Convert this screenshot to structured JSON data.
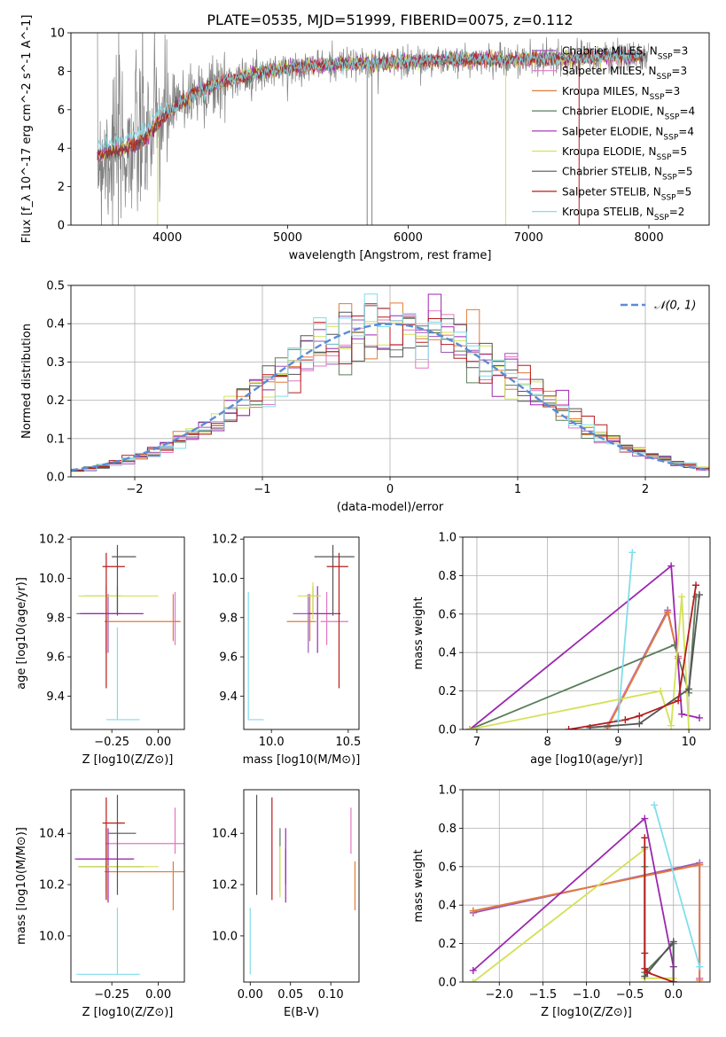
{
  "figure_title": "PLATE=0535, MJD=51999, FIBERID=0075, z=0.112",
  "models": [
    {
      "name": "Chabrier MILES",
      "nssp": "3",
      "color": "#9b59b6"
    },
    {
      "name": "Salpeter MILES",
      "nssp": "3",
      "color": "#e377c2"
    },
    {
      "name": "Kroupa MILES",
      "nssp": "3",
      "color": "#e07b39"
    },
    {
      "name": "Chabrier ELODIE",
      "nssp": "4",
      "color": "#5a7d5a"
    },
    {
      "name": "Salpeter ELODIE",
      "nssp": "4",
      "color": "#9b27af"
    },
    {
      "name": "Kroupa ELODIE",
      "nssp": "5",
      "color": "#d4e157"
    },
    {
      "name": "Chabrier STELIB",
      "nssp": "5",
      "color": "#555555"
    },
    {
      "name": "Salpeter STELIB",
      "nssp": "5",
      "color": "#b71c1c"
    },
    {
      "name": "Kroupa STELIB",
      "nssp": "2",
      "color": "#80deea"
    }
  ],
  "chart_data": [
    {
      "id": "spectrum",
      "type": "line",
      "xlabel": "wavelength [Angstrom, rest frame]",
      "ylabel": "Flux [f_λ 10^-17 erg cm^-2 s^-1 A^-1]",
      "xlim": [
        3200,
        8500
      ],
      "ylim": [
        0,
        10
      ],
      "xticks": [
        4000,
        5000,
        6000,
        7000,
        8000
      ],
      "yticks": [
        0,
        2,
        4,
        6,
        8,
        10
      ],
      "grid": false,
      "legend_position": "right",
      "data_color": "#808080",
      "data_range": [
        3420,
        8000
      ],
      "continuum": {
        "x": [
          3420,
          3600,
          3800,
          4000,
          4200,
          4500,
          4800,
          5200,
          5600,
          6000,
          6500,
          7000,
          7500,
          8000
        ],
        "y": [
          3.6,
          3.9,
          4.4,
          5.8,
          6.8,
          7.5,
          8.0,
          8.3,
          8.4,
          8.5,
          8.6,
          8.6,
          8.7,
          8.8
        ]
      }
    },
    {
      "id": "residuals",
      "type": "step",
      "xlabel": "(data-model)/error",
      "ylabel": "Normed distribution",
      "xlim": [
        -2.5,
        2.5
      ],
      "ylim": [
        0,
        0.5
      ],
      "xticks": [
        -2,
        -1,
        0,
        1,
        2
      ],
      "yticks": [
        0.0,
        0.1,
        0.2,
        0.3,
        0.4,
        0.5
      ],
      "grid": true,
      "bin_width": 0.1,
      "reference_curve": {
        "name": "𝒩(0, 1)",
        "mu": 0,
        "sigma": 1,
        "color": "#5b8bd9"
      },
      "legend_position": "top-right"
    },
    {
      "id": "age-vs-Z",
      "type": "errorbar",
      "xlabel": "Z [log10(Z/Z⊙)]",
      "ylabel": "age [log10(age/yr)]",
      "xlim": [
        -0.47,
        0.14
      ],
      "ylim": [
        9.23,
        10.21
      ],
      "xticks": [
        -0.25,
        0.0
      ],
      "yticks": [
        9.4,
        9.6,
        9.8,
        10.0,
        10.2
      ],
      "points": [
        {
          "x": -0.27,
          "y": 9.82,
          "xerr": [
            0.17,
            0.07
          ],
          "yerr": [
            0.2,
            0.1
          ]
        },
        {
          "x": 0.09,
          "y": 9.78,
          "xerr": [
            0.0,
            0.02
          ],
          "yerr": [
            0.12,
            0.15
          ]
        },
        {
          "x": 0.08,
          "y": 9.78,
          "xerr": [
            0.37,
            0.04
          ],
          "yerr": [
            0.1,
            0.14
          ]
        },
        {
          "x": -0.22,
          "y": 9.91,
          "xerr": [
            0.18,
            0.02
          ],
          "yerr": [
            0.09,
            0.05
          ]
        },
        {
          "x": -0.28,
          "y": 9.82,
          "xerr": [
            0.14,
            0.2
          ],
          "yerr": [
            0.2,
            0.14
          ]
        },
        {
          "x": -0.28,
          "y": 9.91,
          "xerr": [
            0.15,
            0.28
          ],
          "yerr": [
            0.12,
            0.07
          ]
        },
        {
          "x": -0.22,
          "y": 10.11,
          "xerr": [
            0.03,
            0.1
          ],
          "yerr": [
            0.3,
            0.06
          ]
        },
        {
          "x": -0.28,
          "y": 10.06,
          "xerr": [
            0.02,
            0.1
          ],
          "yerr": [
            0.62,
            0.07
          ]
        },
        {
          "x": -0.22,
          "y": 9.28,
          "xerr": [
            0.06,
            0.12
          ],
          "yerr": [
            0.0,
            0.47
          ]
        }
      ]
    },
    {
      "id": "age-vs-mass",
      "type": "errorbar",
      "xlabel": "mass [log10(M/M⊙)]",
      "ylabel": "",
      "xlim": [
        9.82,
        10.57
      ],
      "ylim": [
        9.23,
        10.21
      ],
      "xticks": [
        10.0,
        10.5
      ],
      "yticks": [
        9.4,
        9.6,
        9.8,
        10.0,
        10.2
      ],
      "points": [
        {
          "x": 10.24,
          "y": 9.82,
          "xerr": [
            0.1,
            0.04
          ],
          "yerr": [
            0.2,
            0.1
          ]
        },
        {
          "x": 10.36,
          "y": 9.78,
          "xerr": [
            0.04,
            0.14
          ],
          "yerr": [
            0.12,
            0.15
          ]
        },
        {
          "x": 10.25,
          "y": 9.78,
          "xerr": [
            0.15,
            0.04
          ],
          "yerr": [
            0.1,
            0.14
          ]
        },
        {
          "x": 10.27,
          "y": 9.91,
          "xerr": [
            0.05,
            0.05
          ],
          "yerr": [
            0.09,
            0.05
          ]
        },
        {
          "x": 10.3,
          "y": 9.82,
          "xerr": [
            0.06,
            0.15
          ],
          "yerr": [
            0.2,
            0.14
          ]
        },
        {
          "x": 10.27,
          "y": 9.91,
          "xerr": [
            0.1,
            0.05
          ],
          "yerr": [
            0.12,
            0.07
          ]
        },
        {
          "x": 10.4,
          "y": 10.11,
          "xerr": [
            0.12,
            0.14
          ],
          "yerr": [
            0.3,
            0.06
          ]
        },
        {
          "x": 10.44,
          "y": 10.06,
          "xerr": [
            0.08,
            0.06
          ],
          "yerr": [
            0.62,
            0.07
          ]
        },
        {
          "x": 9.85,
          "y": 9.28,
          "xerr": [
            0.0,
            0.1
          ],
          "yerr": [
            0.0,
            0.65
          ]
        }
      ]
    },
    {
      "id": "weight-vs-age",
      "type": "line",
      "xlabel": "age [log10(age/yr)]",
      "ylabel": "mass weight",
      "xlim": [
        6.8,
        10.3
      ],
      "ylim": [
        0,
        1
      ],
      "xticks": [
        7,
        8,
        9,
        10
      ],
      "yticks": [
        0.0,
        0.2,
        0.4,
        0.6,
        0.8,
        1.0
      ],
      "grid": true,
      "series": [
        {
          "x": [
            8.85,
            9.7,
            9.85
          ],
          "y": [
            0.02,
            0.62,
            0.37
          ]
        },
        {
          "x": [
            8.85,
            9.7,
            9.85
          ],
          "y": [
            0.02,
            0.61,
            0.37
          ]
        },
        {
          "x": [
            8.85,
            9.7,
            9.85
          ],
          "y": [
            0.01,
            0.61,
            0.38
          ]
        },
        {
          "x": [
            6.9,
            9.8,
            10.0,
            10.1
          ],
          "y": [
            0.0,
            0.44,
            0.19,
            0.69
          ]
        },
        {
          "x": [
            6.9,
            9.75,
            9.9,
            10.15
          ],
          "y": [
            0.0,
            0.85,
            0.08,
            0.06
          ]
        },
        {
          "x": [
            6.9,
            9.6,
            9.75,
            9.9,
            10.0
          ],
          "y": [
            0.0,
            0.2,
            0.02,
            0.69,
            0.0
          ]
        },
        {
          "x": [
            8.6,
            9.3,
            10.0,
            10.15
          ],
          "y": [
            0.01,
            0.03,
            0.21,
            0.7
          ]
        },
        {
          "x": [
            8.3,
            9.1,
            9.3,
            9.85,
            10.1
          ],
          "y": [
            0.0,
            0.05,
            0.07,
            0.15,
            0.75
          ]
        },
        {
          "x": [
            9.0,
            9.2
          ],
          "y": [
            0.05,
            0.92
          ]
        }
      ]
    },
    {
      "id": "mass-vs-Z",
      "type": "errorbar",
      "xlabel": "Z [log10(Z/Z⊙)]",
      "ylabel": "mass [log10(M/M⊙)]",
      "xlim": [
        -0.47,
        0.14
      ],
      "ylim": [
        9.82,
        10.57
      ],
      "xticks": [
        -0.25,
        0.0
      ],
      "yticks": [
        10.0,
        10.2,
        10.4
      ],
      "points": [
        {
          "x": -0.28,
          "y": 10.3,
          "xerr": [
            0.17,
            0.14
          ],
          "yerr": [
            0.1,
            0.04
          ]
        },
        {
          "x": 0.09,
          "y": 10.36,
          "xerr": [
            0.37,
            0.06
          ],
          "yerr": [
            0.04,
            0.14
          ]
        },
        {
          "x": 0.08,
          "y": 10.25,
          "xerr": [
            0.37,
            0.06
          ],
          "yerr": [
            0.15,
            0.04
          ]
        },
        {
          "x": -0.28,
          "y": 10.27,
          "xerr": [
            0.15,
            0.2
          ],
          "yerr": [
            0.1,
            0.15
          ]
        },
        {
          "x": -0.27,
          "y": 10.3,
          "xerr": [
            0.17,
            0.14
          ],
          "yerr": [
            0.17,
            0.12
          ]
        },
        {
          "x": -0.28,
          "y": 10.27,
          "xerr": [
            0.15,
            0.28
          ],
          "yerr": [
            0.12,
            0.08
          ]
        },
        {
          "x": -0.22,
          "y": 10.4,
          "xerr": [
            0.05,
            0.1
          ],
          "yerr": [
            0.24,
            0.15
          ]
        },
        {
          "x": -0.28,
          "y": 10.44,
          "xerr": [
            0.02,
            0.1
          ],
          "yerr": [
            0.3,
            0.1
          ]
        },
        {
          "x": -0.22,
          "y": 9.85,
          "xerr": [
            0.22,
            0.12
          ],
          "yerr": [
            0.0,
            0.26
          ]
        }
      ]
    },
    {
      "id": "ebv",
      "type": "errorbar",
      "xlabel": "E(B-V)",
      "ylabel": "",
      "xlim": [
        -0.008,
        0.135
      ],
      "ylim": [
        9.82,
        10.57
      ],
      "xticks": [
        0.0,
        0.05,
        0.1
      ],
      "yticks": [
        10.0,
        10.2,
        10.4
      ],
      "points": [
        {
          "x": 0.044,
          "y": 10.3,
          "yerr": [
            0.1,
            0.04
          ]
        },
        {
          "x": 0.125,
          "y": 10.36,
          "yerr": [
            0.04,
            0.14
          ]
        },
        {
          "x": 0.13,
          "y": 10.25,
          "yerr": [
            0.15,
            0.04
          ]
        },
        {
          "x": 0.037,
          "y": 10.27,
          "yerr": [
            0.1,
            0.15
          ]
        },
        {
          "x": 0.044,
          "y": 10.3,
          "yerr": [
            0.17,
            0.12
          ]
        },
        {
          "x": 0.037,
          "y": 10.27,
          "yerr": [
            0.12,
            0.08
          ]
        },
        {
          "x": 0.008,
          "y": 10.4,
          "yerr": [
            0.24,
            0.15
          ]
        },
        {
          "x": 0.027,
          "y": 10.44,
          "yerr": [
            0.3,
            0.1
          ]
        },
        {
          "x": 0.0,
          "y": 9.85,
          "yerr": [
            0.0,
            0.26
          ]
        }
      ]
    },
    {
      "id": "weight-vs-Z",
      "type": "line",
      "xlabel": "Z [log10(Z/Z⊙)]",
      "ylabel": "mass weight",
      "xlim": [
        -2.42,
        0.42
      ],
      "ylim": [
        0,
        1
      ],
      "xticks": [
        -2.0,
        -1.5,
        -1.0,
        -0.5,
        0.0
      ],
      "yticks": [
        0.0,
        0.2,
        0.4,
        0.6,
        0.8,
        1.0
      ],
      "grid": true,
      "series": [
        {
          "x": [
            -2.3,
            0.3,
            0.3
          ],
          "y": [
            0.36,
            0.62,
            0.02
          ]
        },
        {
          "x": [
            -2.3,
            0.3,
            0.3
          ],
          "y": [
            0.37,
            0.61,
            0.02
          ]
        },
        {
          "x": [
            -2.3,
            0.3,
            0.3
          ],
          "y": [
            0.37,
            0.61,
            0.01
          ]
        },
        {
          "x": [
            -0.33,
            -0.33,
            0.0,
            0.0
          ],
          "y": [
            0.6,
            0.05,
            0.2,
            0.0
          ]
        },
        {
          "x": [
            -2.3,
            -0.33,
            0.0,
            0.0
          ],
          "y": [
            0.06,
            0.85,
            0.08,
            0.0
          ]
        },
        {
          "x": [
            -2.3,
            -0.33,
            -0.33,
            0.0,
            0.0
          ],
          "y": [
            0.0,
            0.69,
            0.02,
            0.02,
            0.0
          ]
        },
        {
          "x": [
            -0.33,
            -0.33,
            0.0,
            0.0
          ],
          "y": [
            0.7,
            0.03,
            0.21,
            0.0
          ]
        },
        {
          "x": [
            -0.33,
            -0.33,
            -0.33,
            -0.3,
            0.0
          ],
          "y": [
            0.75,
            0.15,
            0.07,
            0.05,
            0.0
          ]
        },
        {
          "x": [
            -0.22,
            0.3
          ],
          "y": [
            0.92,
            0.08
          ]
        }
      ]
    }
  ]
}
